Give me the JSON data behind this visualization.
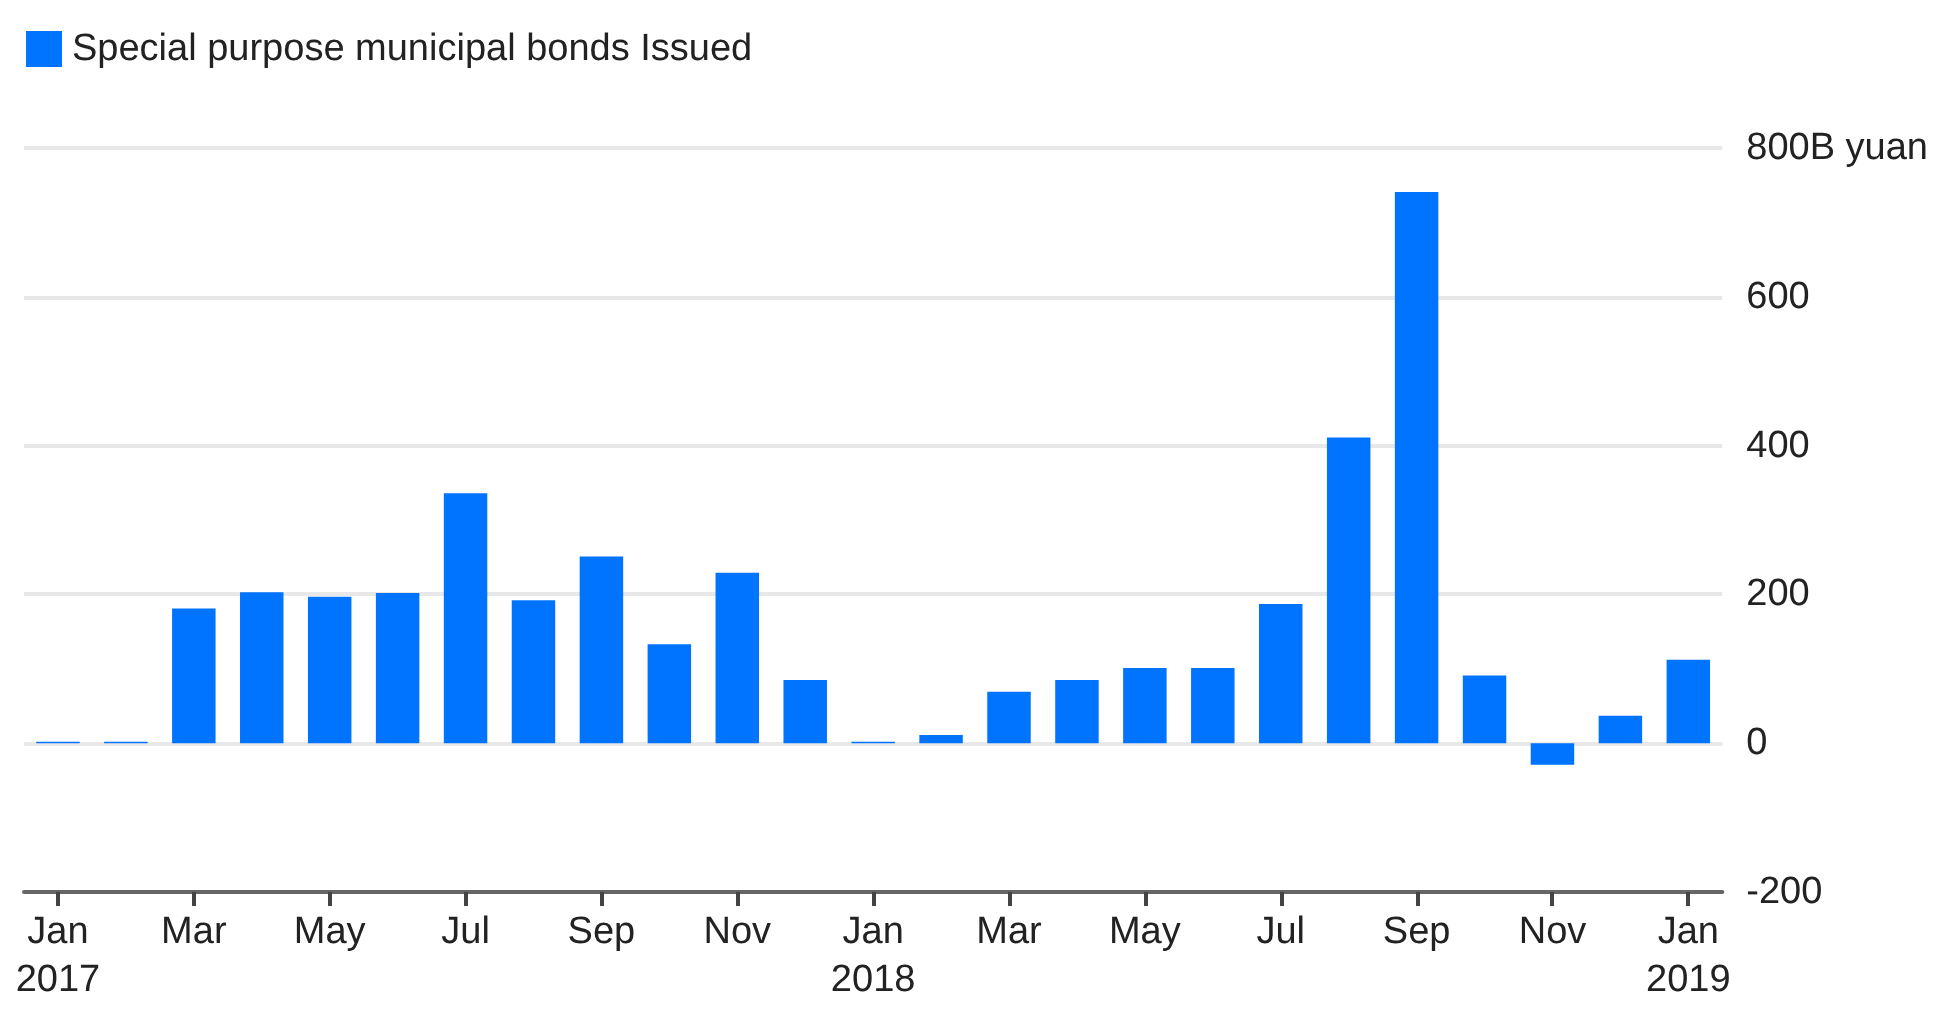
{
  "chart_data": {
    "type": "bar",
    "categories": [
      "Jan\n2017",
      null,
      "Mar",
      null,
      "May",
      null,
      "Jul",
      null,
      "Sep",
      null,
      "Nov",
      null,
      "Jan\n2018",
      null,
      "Mar",
      null,
      "May",
      null,
      "Jul",
      null,
      "Sep",
      null,
      "Nov",
      null,
      "Jan\n2019"
    ],
    "series": [
      {
        "name": "Special purpose municipal bonds Issued",
        "color": "#0073ff",
        "values": [
          2,
          2,
          181,
          203,
          197,
          202,
          336,
          192,
          251,
          133,
          229,
          85,
          2,
          11,
          69,
          85,
          101,
          101,
          187,
          411,
          741,
          91,
          -29,
          37,
          112
        ]
      }
    ],
    "ylim": [
      -200,
      800
    ],
    "yticks": [
      -200,
      0,
      200,
      400,
      600,
      {
        "value": 800,
        "label": "800B yuan"
      }
    ],
    "grid": "y",
    "legend": "top left"
  }
}
